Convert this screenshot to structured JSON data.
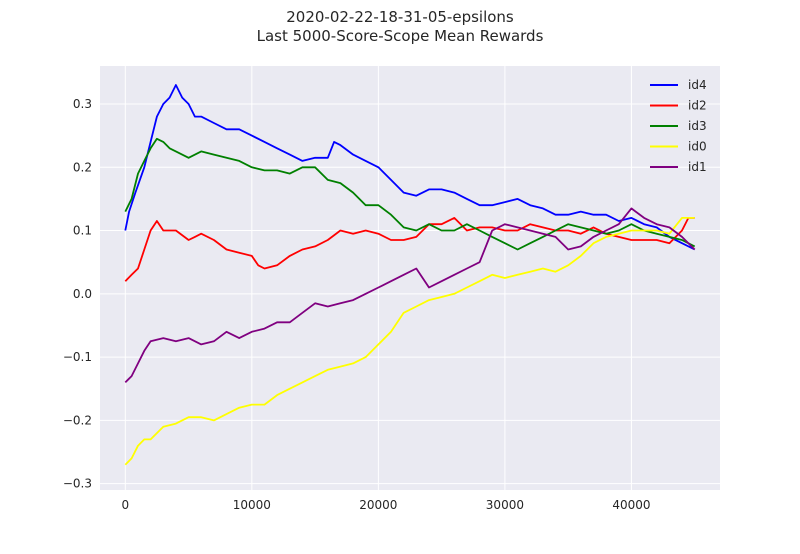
{
  "chart_data": {
    "type": "line",
    "title": "2020-02-22-18-31-05-epsilons",
    "subtitle": "Last 5000-Score-Scope Mean Rewards",
    "xlabel": "",
    "ylabel": "",
    "xlim": [
      -2000,
      47000
    ],
    "ylim": [
      -0.31,
      0.36
    ],
    "x_ticks": [
      0,
      10000,
      20000,
      30000,
      40000
    ],
    "x_tick_labels": [
      "0",
      "10000",
      "20000",
      "30000",
      "40000"
    ],
    "y_ticks": [
      -0.3,
      -0.2,
      -0.1,
      0.0,
      0.1,
      0.2,
      0.3
    ],
    "y_tick_labels": [
      "−0.3",
      "−0.2",
      "−0.1",
      "0.0",
      "0.1",
      "0.2",
      "0.3"
    ],
    "grid": true,
    "legend_position": "top-right",
    "background_color": "#eaeaf2",
    "series": [
      {
        "name": "id4",
        "color": "#0000ff",
        "points": [
          [
            0,
            0.1
          ],
          [
            300,
            0.13
          ],
          [
            800,
            0.16
          ],
          [
            1500,
            0.2
          ],
          [
            2000,
            0.24
          ],
          [
            2500,
            0.28
          ],
          [
            3000,
            0.3
          ],
          [
            3500,
            0.31
          ],
          [
            4000,
            0.33
          ],
          [
            4500,
            0.31
          ],
          [
            5000,
            0.3
          ],
          [
            5500,
            0.28
          ],
          [
            6000,
            0.28
          ],
          [
            7000,
            0.27
          ],
          [
            8000,
            0.26
          ],
          [
            9000,
            0.26
          ],
          [
            10000,
            0.25
          ],
          [
            11000,
            0.24
          ],
          [
            12000,
            0.23
          ],
          [
            13000,
            0.22
          ],
          [
            14000,
            0.21
          ],
          [
            15000,
            0.215
          ],
          [
            16000,
            0.215
          ],
          [
            16500,
            0.24
          ],
          [
            17000,
            0.235
          ],
          [
            18000,
            0.22
          ],
          [
            19000,
            0.21
          ],
          [
            20000,
            0.2
          ],
          [
            21000,
            0.18
          ],
          [
            22000,
            0.16
          ],
          [
            23000,
            0.155
          ],
          [
            24000,
            0.165
          ],
          [
            25000,
            0.165
          ],
          [
            26000,
            0.16
          ],
          [
            27000,
            0.15
          ],
          [
            28000,
            0.14
          ],
          [
            29000,
            0.14
          ],
          [
            30000,
            0.145
          ],
          [
            31000,
            0.15
          ],
          [
            32000,
            0.14
          ],
          [
            33000,
            0.135
          ],
          [
            34000,
            0.125
          ],
          [
            35000,
            0.125
          ],
          [
            36000,
            0.13
          ],
          [
            37000,
            0.125
          ],
          [
            38000,
            0.125
          ],
          [
            39000,
            0.115
          ],
          [
            40000,
            0.12
          ],
          [
            41000,
            0.11
          ],
          [
            42000,
            0.105
          ],
          [
            43000,
            0.09
          ],
          [
            44000,
            0.08
          ],
          [
            45000,
            0.07
          ]
        ]
      },
      {
        "name": "id2",
        "color": "#ff0000",
        "points": [
          [
            0,
            0.02
          ],
          [
            500,
            0.03
          ],
          [
            1000,
            0.04
          ],
          [
            1500,
            0.07
          ],
          [
            2000,
            0.1
          ],
          [
            2500,
            0.115
          ],
          [
            3000,
            0.1
          ],
          [
            4000,
            0.1
          ],
          [
            5000,
            0.085
          ],
          [
            5500,
            0.09
          ],
          [
            6000,
            0.095
          ],
          [
            7000,
            0.085
          ],
          [
            8000,
            0.07
          ],
          [
            9000,
            0.065
          ],
          [
            10000,
            0.06
          ],
          [
            10500,
            0.045
          ],
          [
            11000,
            0.04
          ],
          [
            12000,
            0.045
          ],
          [
            13000,
            0.06
          ],
          [
            14000,
            0.07
          ],
          [
            15000,
            0.075
          ],
          [
            16000,
            0.085
          ],
          [
            17000,
            0.1
          ],
          [
            18000,
            0.095
          ],
          [
            19000,
            0.1
          ],
          [
            20000,
            0.095
          ],
          [
            21000,
            0.085
          ],
          [
            22000,
            0.085
          ],
          [
            23000,
            0.09
          ],
          [
            24000,
            0.11
          ],
          [
            25000,
            0.11
          ],
          [
            26000,
            0.12
          ],
          [
            27000,
            0.1
          ],
          [
            28000,
            0.105
          ],
          [
            29000,
            0.105
          ],
          [
            30000,
            0.1
          ],
          [
            31000,
            0.1
          ],
          [
            32000,
            0.11
          ],
          [
            33000,
            0.105
          ],
          [
            34000,
            0.1
          ],
          [
            35000,
            0.1
          ],
          [
            36000,
            0.095
          ],
          [
            37000,
            0.105
          ],
          [
            38000,
            0.095
          ],
          [
            39000,
            0.09
          ],
          [
            40000,
            0.085
          ],
          [
            41000,
            0.085
          ],
          [
            42000,
            0.085
          ],
          [
            43000,
            0.08
          ],
          [
            44000,
            0.1
          ],
          [
            44500,
            0.12
          ],
          [
            45000,
            0.12
          ]
        ]
      },
      {
        "name": "id3",
        "color": "#008000",
        "points": [
          [
            0,
            0.13
          ],
          [
            500,
            0.15
          ],
          [
            1000,
            0.19
          ],
          [
            1500,
            0.21
          ],
          [
            2000,
            0.23
          ],
          [
            2500,
            0.245
          ],
          [
            3000,
            0.24
          ],
          [
            3500,
            0.23
          ],
          [
            4000,
            0.225
          ],
          [
            5000,
            0.215
          ],
          [
            6000,
            0.225
          ],
          [
            7000,
            0.22
          ],
          [
            8000,
            0.215
          ],
          [
            9000,
            0.21
          ],
          [
            10000,
            0.2
          ],
          [
            11000,
            0.195
          ],
          [
            12000,
            0.195
          ],
          [
            13000,
            0.19
          ],
          [
            14000,
            0.2
          ],
          [
            15000,
            0.2
          ],
          [
            16000,
            0.18
          ],
          [
            17000,
            0.175
          ],
          [
            18000,
            0.16
          ],
          [
            19000,
            0.14
          ],
          [
            20000,
            0.14
          ],
          [
            21000,
            0.125
          ],
          [
            22000,
            0.105
          ],
          [
            23000,
            0.1
          ],
          [
            24000,
            0.11
          ],
          [
            25000,
            0.1
          ],
          [
            26000,
            0.1
          ],
          [
            27000,
            0.11
          ],
          [
            28000,
            0.1
          ],
          [
            29000,
            0.09
          ],
          [
            30000,
            0.08
          ],
          [
            31000,
            0.07
          ],
          [
            32000,
            0.08
          ],
          [
            33000,
            0.09
          ],
          [
            34000,
            0.1
          ],
          [
            35000,
            0.11
          ],
          [
            36000,
            0.105
          ],
          [
            37000,
            0.1
          ],
          [
            38000,
            0.095
          ],
          [
            39000,
            0.1
          ],
          [
            40000,
            0.11
          ],
          [
            41000,
            0.1
          ],
          [
            42000,
            0.095
          ],
          [
            43000,
            0.09
          ],
          [
            44000,
            0.085
          ],
          [
            45000,
            0.075
          ]
        ]
      },
      {
        "name": "id0",
        "color": "#ffff00",
        "points": [
          [
            0,
            -0.27
          ],
          [
            500,
            -0.26
          ],
          [
            1000,
            -0.24
          ],
          [
            1500,
            -0.23
          ],
          [
            2000,
            -0.23
          ],
          [
            3000,
            -0.21
          ],
          [
            4000,
            -0.205
          ],
          [
            5000,
            -0.195
          ],
          [
            6000,
            -0.195
          ],
          [
            7000,
            -0.2
          ],
          [
            8000,
            -0.19
          ],
          [
            9000,
            -0.18
          ],
          [
            10000,
            -0.175
          ],
          [
            11000,
            -0.175
          ],
          [
            12000,
            -0.16
          ],
          [
            13000,
            -0.15
          ],
          [
            14000,
            -0.14
          ],
          [
            15000,
            -0.13
          ],
          [
            16000,
            -0.12
          ],
          [
            17000,
            -0.115
          ],
          [
            18000,
            -0.11
          ],
          [
            19000,
            -0.1
          ],
          [
            20000,
            -0.08
          ],
          [
            21000,
            -0.06
          ],
          [
            22000,
            -0.03
          ],
          [
            23000,
            -0.02
          ],
          [
            24000,
            -0.01
          ],
          [
            25000,
            -0.005
          ],
          [
            26000,
            0.0
          ],
          [
            27000,
            0.01
          ],
          [
            28000,
            0.02
          ],
          [
            29000,
            0.03
          ],
          [
            30000,
            0.025
          ],
          [
            31000,
            0.03
          ],
          [
            32000,
            0.035
          ],
          [
            33000,
            0.04
          ],
          [
            34000,
            0.035
          ],
          [
            35000,
            0.045
          ],
          [
            36000,
            0.06
          ],
          [
            37000,
            0.08
          ],
          [
            38000,
            0.09
          ],
          [
            39000,
            0.095
          ],
          [
            40000,
            0.1
          ],
          [
            41000,
            0.1
          ],
          [
            42000,
            0.1
          ],
          [
            43000,
            0.095
          ],
          [
            44000,
            0.12
          ],
          [
            45000,
            0.12
          ]
        ]
      },
      {
        "name": "id1",
        "color": "#800080",
        "points": [
          [
            0,
            -0.14
          ],
          [
            500,
            -0.13
          ],
          [
            1000,
            -0.11
          ],
          [
            1500,
            -0.09
          ],
          [
            2000,
            -0.075
          ],
          [
            3000,
            -0.07
          ],
          [
            4000,
            -0.075
          ],
          [
            5000,
            -0.07
          ],
          [
            6000,
            -0.08
          ],
          [
            7000,
            -0.075
          ],
          [
            8000,
            -0.06
          ],
          [
            9000,
            -0.07
          ],
          [
            10000,
            -0.06
          ],
          [
            11000,
            -0.055
          ],
          [
            12000,
            -0.045
          ],
          [
            13000,
            -0.045
          ],
          [
            14000,
            -0.03
          ],
          [
            15000,
            -0.015
          ],
          [
            16000,
            -0.02
          ],
          [
            17000,
            -0.015
          ],
          [
            18000,
            -0.01
          ],
          [
            19000,
            0.0
          ],
          [
            20000,
            0.01
          ],
          [
            21000,
            0.02
          ],
          [
            22000,
            0.03
          ],
          [
            23000,
            0.04
          ],
          [
            24000,
            0.01
          ],
          [
            25000,
            0.02
          ],
          [
            26000,
            0.03
          ],
          [
            27000,
            0.04
          ],
          [
            28000,
            0.05
          ],
          [
            29000,
            0.1
          ],
          [
            30000,
            0.11
          ],
          [
            31000,
            0.105
          ],
          [
            32000,
            0.1
          ],
          [
            33000,
            0.095
          ],
          [
            34000,
            0.09
          ],
          [
            35000,
            0.07
          ],
          [
            36000,
            0.075
          ],
          [
            37000,
            0.09
          ],
          [
            38000,
            0.1
          ],
          [
            39000,
            0.11
          ],
          [
            40000,
            0.135
          ],
          [
            41000,
            0.12
          ],
          [
            42000,
            0.11
          ],
          [
            43000,
            0.105
          ],
          [
            44000,
            0.09
          ],
          [
            45000,
            0.07
          ]
        ]
      }
    ]
  }
}
